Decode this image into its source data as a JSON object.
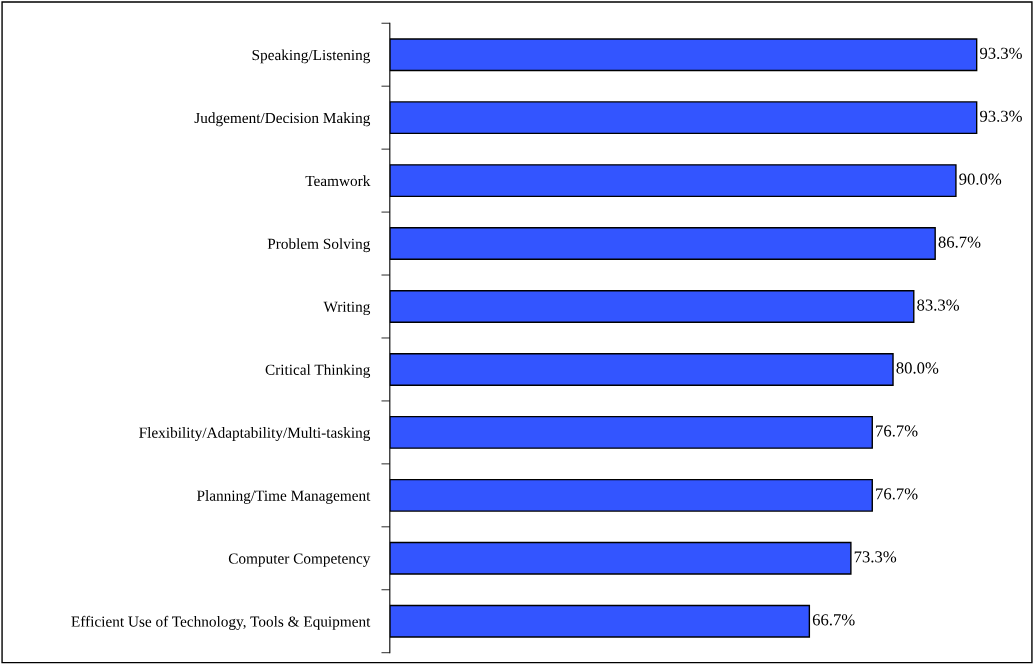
{
  "chart_data": {
    "type": "bar",
    "orientation": "horizontal",
    "categories": [
      "Speaking/Listening",
      "Judgement/Decision Making",
      "Teamwork",
      "Problem Solving",
      "Writing",
      "Critical Thinking",
      "Flexibility/Adaptability/Multi-tasking",
      "Planning/Time Management",
      "Computer Competency",
      "Efficient Use of Technology, Tools & Equipment"
    ],
    "values": [
      93.3,
      93.3,
      90.0,
      86.7,
      83.3,
      80.0,
      76.7,
      76.7,
      73.3,
      66.7
    ],
    "value_labels": [
      "93.3%",
      "93.3%",
      "90.0%",
      "86.7%",
      "83.3%",
      "80.0%",
      "76.7%",
      "76.7%",
      "73.3%",
      "66.7%"
    ],
    "color": "#3355ff",
    "grid": false,
    "legend": false
  }
}
